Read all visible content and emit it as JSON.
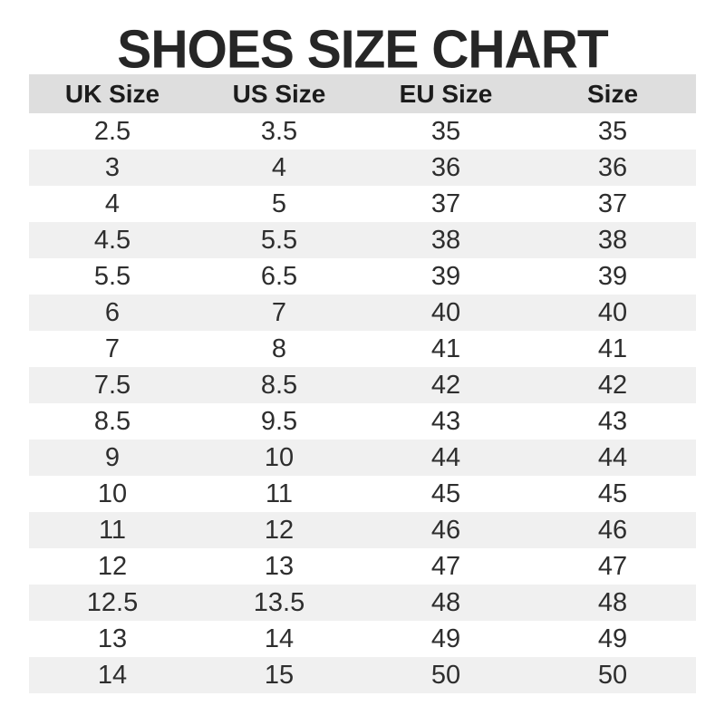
{
  "title": "SHOES SIZE CHART",
  "chart_data": {
    "type": "table",
    "title": "SHOES SIZE CHART",
    "columns": [
      "UK Size",
      "US Size",
      "EU Size",
      "Size"
    ],
    "rows": [
      [
        "2.5",
        "3.5",
        "35",
        "35"
      ],
      [
        "3",
        "4",
        "36",
        "36"
      ],
      [
        "4",
        "5",
        "37",
        "37"
      ],
      [
        "4.5",
        "5.5",
        "38",
        "38"
      ],
      [
        "5.5",
        "6.5",
        "39",
        "39"
      ],
      [
        "6",
        "7",
        "40",
        "40"
      ],
      [
        "7",
        "8",
        "41",
        "41"
      ],
      [
        "7.5",
        "8.5",
        "42",
        "42"
      ],
      [
        "8.5",
        "9.5",
        "43",
        "43"
      ],
      [
        "9",
        "10",
        "44",
        "44"
      ],
      [
        "10",
        "11",
        "45",
        "45"
      ],
      [
        "11",
        "12",
        "46",
        "46"
      ],
      [
        "12",
        "13",
        "47",
        "47"
      ],
      [
        "12.5",
        "13.5",
        "48",
        "48"
      ],
      [
        "13",
        "14",
        "49",
        "49"
      ],
      [
        "14",
        "15",
        "50",
        "50"
      ]
    ],
    "layout": {
      "header_background": "#dedede",
      "stripe_background": "#f0f0f0",
      "row_background": "#ffffff",
      "stripes": "alternating, first data row white",
      "text_align": "center"
    }
  },
  "colors": {
    "title_text": "#262626",
    "header_bg": "#dedede",
    "stripe_bg": "#f0f0f0",
    "body_text": "#2e2e2e"
  }
}
